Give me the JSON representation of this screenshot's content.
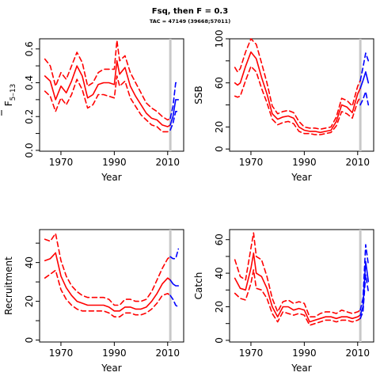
{
  "title": "Fsq, then F = 0.3",
  "subtitle": "TAC = 47149 (39668;57011)",
  "colors": {
    "estimate": "#ff0000",
    "forecast": "#0000ff",
    "vline": "#c8c8c8"
  },
  "chart_data": [
    {
      "type": "line",
      "xlabel": "Year",
      "ylabel_main": "F",
      "ylabel_sub": "5–13",
      "ylabel_bar": true,
      "xlim": [
        1962,
        2016
      ],
      "ylim": [
        -0.005,
        0.66
      ],
      "xticks": [
        1970,
        1990,
        2010
      ],
      "yticks": [
        0.0,
        0.1,
        0.2,
        0.3,
        0.4,
        0.5,
        0.6
      ],
      "ytick_labels": [
        "0.0",
        "",
        "0.2",
        "",
        "0.4",
        "",
        "0.6"
      ],
      "vline_x": 2011,
      "series": [
        {
          "role": "estimate",
          "style": "solid",
          "color": "#ff0000",
          "x": [
            1964,
            1966,
            1968,
            1970,
            1972,
            1974,
            1976,
            1978,
            1980,
            1982,
            1984,
            1986,
            1988,
            1990,
            1991,
            1992,
            1994,
            1996,
            1998,
            2000,
            2002,
            2004,
            2006,
            2008,
            2010,
            2011
          ],
          "y": [
            0.44,
            0.41,
            0.3,
            0.38,
            0.34,
            0.41,
            0.5,
            0.44,
            0.31,
            0.33,
            0.39,
            0.4,
            0.4,
            0.39,
            0.53,
            0.45,
            0.49,
            0.38,
            0.32,
            0.27,
            0.22,
            0.19,
            0.18,
            0.15,
            0.14,
            0.15
          ]
        },
        {
          "role": "estimate-upper",
          "style": "dashed",
          "color": "#ff0000",
          "x": [
            1964,
            1966,
            1968,
            1970,
            1972,
            1974,
            1976,
            1978,
            1980,
            1982,
            1984,
            1986,
            1988,
            1990,
            1991,
            1992,
            1994,
            1996,
            1998,
            2000,
            2002,
            2004,
            2006,
            2008,
            2010,
            2011
          ],
          "y": [
            0.54,
            0.5,
            0.38,
            0.46,
            0.42,
            0.5,
            0.58,
            0.52,
            0.38,
            0.4,
            0.46,
            0.48,
            0.48,
            0.48,
            0.65,
            0.53,
            0.56,
            0.46,
            0.4,
            0.34,
            0.28,
            0.25,
            0.23,
            0.2,
            0.18,
            0.19
          ]
        },
        {
          "role": "estimate-lower",
          "style": "dashed",
          "color": "#ff0000",
          "x": [
            1964,
            1966,
            1968,
            1970,
            1972,
            1974,
            1976,
            1978,
            1980,
            1982,
            1984,
            1986,
            1988,
            1990,
            1991,
            1992,
            1994,
            1996,
            1998,
            2000,
            2002,
            2004,
            2006,
            2008,
            2010,
            2011
          ],
          "y": [
            0.35,
            0.32,
            0.23,
            0.31,
            0.27,
            0.33,
            0.42,
            0.36,
            0.25,
            0.27,
            0.33,
            0.33,
            0.32,
            0.31,
            0.44,
            0.38,
            0.41,
            0.31,
            0.26,
            0.21,
            0.18,
            0.15,
            0.14,
            0.11,
            0.11,
            0.12
          ]
        },
        {
          "role": "forecast",
          "style": "solid",
          "color": "#0000ff",
          "x": [
            2011,
            2012,
            2013,
            2014
          ],
          "y": [
            0.15,
            0.2,
            0.3,
            0.3
          ]
        },
        {
          "role": "forecast-upper",
          "style": "dashed",
          "color": "#0000ff",
          "x": [
            2011,
            2012,
            2013,
            2014
          ],
          "y": [
            0.19,
            0.26,
            0.4,
            0.4
          ]
        },
        {
          "role": "forecast-lower",
          "style": "dashed",
          "color": "#0000ff",
          "x": [
            2011,
            2012,
            2013,
            2014
          ],
          "y": [
            0.12,
            0.16,
            0.23,
            0.23
          ]
        }
      ]
    },
    {
      "type": "line",
      "xlabel": "Year",
      "ylabel_main": "SSB",
      "xlim": [
        1962,
        2016
      ],
      "ylim": [
        -2,
        100
      ],
      "xticks": [
        1970,
        1990,
        2010
      ],
      "yticks": [
        0,
        20,
        40,
        60,
        80,
        100
      ],
      "ytick_labels": [
        "0",
        "20",
        "",
        "60",
        "",
        "100"
      ],
      "vline_x": 2011,
      "series": [
        {
          "role": "estimate",
          "style": "solid",
          "color": "#ff0000",
          "x": [
            1964,
            1965,
            1966,
            1968,
            1970,
            1972,
            1974,
            1976,
            1978,
            1980,
            1982,
            1984,
            1986,
            1988,
            1990,
            1992,
            1994,
            1996,
            1998,
            2000,
            2002,
            2004,
            2006,
            2008,
            2010,
            2011
          ],
          "y": [
            60,
            58,
            60,
            75,
            88,
            82,
            65,
            50,
            32,
            27,
            29,
            30,
            28,
            20,
            17,
            16,
            16,
            15,
            16,
            17,
            25,
            40,
            38,
            33,
            50,
            55
          ]
        },
        {
          "role": "estimate-upper",
          "style": "dashed",
          "color": "#ff0000",
          "x": [
            1964,
            1965,
            1966,
            1968,
            1970,
            1972,
            1974,
            1976,
            1978,
            1980,
            1982,
            1984,
            1986,
            1988,
            1990,
            1992,
            1994,
            1996,
            1998,
            2000,
            2002,
            2004,
            2006,
            2008,
            2010,
            2011
          ],
          "y": [
            74,
            70,
            73,
            88,
            100,
            95,
            78,
            60,
            39,
            32,
            34,
            35,
            33,
            25,
            20,
            19,
            19,
            18,
            19,
            20,
            29,
            46,
            44,
            39,
            57,
            62
          ]
        },
        {
          "role": "estimate-lower",
          "style": "dashed",
          "color": "#ff0000",
          "x": [
            1964,
            1965,
            1966,
            1968,
            1970,
            1972,
            1974,
            1976,
            1978,
            1980,
            1982,
            1984,
            1986,
            1988,
            1990,
            1992,
            1994,
            1996,
            1998,
            2000,
            2002,
            2004,
            2006,
            2008,
            2010,
            2011
          ],
          "y": [
            48,
            47,
            48,
            62,
            75,
            70,
            55,
            42,
            27,
            22,
            24,
            25,
            23,
            16,
            14,
            14,
            13,
            13,
            14,
            15,
            21,
            34,
            32,
            28,
            43,
            47
          ]
        },
        {
          "role": "forecast",
          "style": "solid",
          "color": "#0000ff",
          "x": [
            2011,
            2012,
            2013,
            2014
          ],
          "y": [
            55,
            62,
            70,
            60
          ]
        },
        {
          "role": "forecast-upper",
          "style": "dashed",
          "color": "#0000ff",
          "x": [
            2011,
            2012,
            2013,
            2014
          ],
          "y": [
            62,
            74,
            87,
            80
          ]
        },
        {
          "role": "forecast-lower",
          "style": "dashed",
          "color": "#0000ff",
          "x": [
            2011,
            2012,
            2013,
            2014
          ],
          "y": [
            40,
            45,
            52,
            40
          ]
        }
      ]
    },
    {
      "type": "line",
      "xlabel": "Year",
      "ylabel_main": "Recruitment",
      "xlim": [
        1962,
        2016
      ],
      "ylim": [
        -1,
        57
      ],
      "xticks": [
        1970,
        1990,
        2010
      ],
      "yticks": [
        0,
        10,
        20,
        30,
        40,
        50
      ],
      "ytick_labels": [
        "0",
        "",
        "20",
        "",
        "40",
        ""
      ],
      "vline_x": 2011,
      "series": [
        {
          "role": "estimate",
          "style": "solid",
          "color": "#ff0000",
          "x": [
            1964,
            1966,
            1968,
            1970,
            1972,
            1974,
            1976,
            1978,
            1980,
            1982,
            1984,
            1986,
            1988,
            1990,
            1992,
            1994,
            1996,
            1998,
            2000,
            2002,
            2004,
            2006,
            2008,
            2010,
            2011
          ],
          "y": [
            41,
            42,
            45,
            33,
            27,
            23,
            20,
            19,
            18,
            18,
            18,
            18,
            17,
            15,
            15,
            17,
            17,
            16,
            16,
            17,
            20,
            24,
            29,
            32,
            31
          ]
        },
        {
          "role": "estimate-upper",
          "style": "dashed",
          "color": "#ff0000",
          "x": [
            1964,
            1966,
            1968,
            1970,
            1972,
            1974,
            1976,
            1978,
            1980,
            1982,
            1984,
            1986,
            1988,
            1990,
            1992,
            1994,
            1996,
            1998,
            2000,
            2002,
            2004,
            2006,
            2008,
            2010,
            2011
          ],
          "y": [
            52,
            51,
            55,
            41,
            33,
            28,
            25,
            23,
            22,
            22,
            22,
            22,
            21,
            18,
            18,
            21,
            21,
            20,
            20,
            21,
            25,
            31,
            37,
            42,
            43
          ]
        },
        {
          "role": "estimate-lower",
          "style": "dashed",
          "color": "#ff0000",
          "x": [
            1964,
            1966,
            1968,
            1970,
            1972,
            1974,
            1976,
            1978,
            1980,
            1982,
            1984,
            1986,
            1988,
            1990,
            1992,
            1994,
            1996,
            1998,
            2000,
            2002,
            2004,
            2006,
            2008,
            2010,
            2011
          ],
          "y": [
            32,
            34,
            36,
            26,
            21,
            18,
            16,
            15,
            15,
            15,
            15,
            15,
            14,
            12,
            12,
            14,
            14,
            13,
            13,
            14,
            16,
            19,
            23,
            24,
            23
          ]
        },
        {
          "role": "forecast",
          "style": "solid",
          "color": "#0000ff",
          "x": [
            2011,
            2012,
            2013,
            2014
          ],
          "y": [
            31,
            29,
            28,
            28
          ]
        },
        {
          "role": "forecast-upper",
          "style": "dashed",
          "color": "#0000ff",
          "x": [
            2011,
            2012,
            2013,
            2014
          ],
          "y": [
            43,
            42,
            42,
            47
          ]
        },
        {
          "role": "forecast-lower",
          "style": "dashed",
          "color": "#0000ff",
          "x": [
            2011,
            2012,
            2013,
            2014
          ],
          "y": [
            23,
            21,
            18,
            17
          ]
        }
      ]
    },
    {
      "type": "line",
      "xlabel": "Year",
      "ylabel_main": "Catch",
      "xlim": [
        1962,
        2016
      ],
      "ylim": [
        -1,
        66
      ],
      "xticks": [
        1970,
        1990,
        2010
      ],
      "yticks": [
        0,
        10,
        20,
        30,
        40,
        50,
        60
      ],
      "ytick_labels": [
        "0",
        "",
        "20",
        "",
        "40",
        "",
        "60"
      ],
      "vline_x": 2011,
      "series": [
        {
          "role": "estimate",
          "style": "solid",
          "color": "#ff0000",
          "x": [
            1964,
            1966,
            1968,
            1970,
            1971,
            1972,
            1974,
            1976,
            1978,
            1980,
            1982,
            1984,
            1986,
            1988,
            1990,
            1992,
            1994,
            1996,
            1998,
            2000,
            2002,
            2004,
            2006,
            2008,
            2010,
            2011
          ],
          "y": [
            37,
            31,
            30,
            43,
            52,
            40,
            38,
            31,
            20,
            14,
            20,
            20,
            18,
            19,
            18,
            11,
            12,
            13,
            14,
            14,
            13,
            14,
            14,
            13,
            14,
            15
          ]
        },
        {
          "role": "estimate-upper",
          "style": "dashed",
          "color": "#ff0000",
          "x": [
            1964,
            1966,
            1968,
            1970,
            1971,
            1972,
            1974,
            1976,
            1978,
            1980,
            1982,
            1984,
            1986,
            1988,
            1990,
            1992,
            1994,
            1996,
            1998,
            2000,
            2002,
            2004,
            2006,
            2008,
            2010,
            2011
          ],
          "y": [
            48,
            38,
            36,
            55,
            64,
            50,
            48,
            38,
            25,
            17,
            23,
            24,
            22,
            23,
            22,
            14,
            14,
            16,
            17,
            17,
            16,
            18,
            17,
            16,
            17,
            18
          ]
        },
        {
          "role": "estimate-lower",
          "style": "dashed",
          "color": "#ff0000",
          "x": [
            1964,
            1966,
            1968,
            1970,
            1971,
            1972,
            1974,
            1976,
            1978,
            1980,
            1982,
            1984,
            1986,
            1988,
            1990,
            1992,
            1994,
            1996,
            1998,
            2000,
            2002,
            2004,
            2006,
            2008,
            2010,
            2011
          ],
          "y": [
            28,
            25,
            24,
            34,
            42,
            31,
            30,
            25,
            16,
            11,
            17,
            16,
            15,
            16,
            15,
            9,
            10,
            11,
            12,
            12,
            11,
            12,
            12,
            11,
            12,
            13
          ]
        },
        {
          "role": "forecast",
          "style": "solid",
          "color": "#0000ff",
          "x": [
            2011,
            2012,
            2013,
            2014
          ],
          "y": [
            15,
            20,
            47,
            35
          ]
        },
        {
          "role": "forecast-upper",
          "style": "dashed",
          "color": "#0000ff",
          "x": [
            2011,
            2012,
            2013,
            2014
          ],
          "y": [
            18,
            25,
            57,
            45
          ]
        },
        {
          "role": "forecast-lower",
          "style": "dashed",
          "color": "#0000ff",
          "x": [
            2011,
            2012,
            2013,
            2014
          ],
          "y": [
            13,
            17,
            39,
            29
          ]
        }
      ]
    }
  ]
}
